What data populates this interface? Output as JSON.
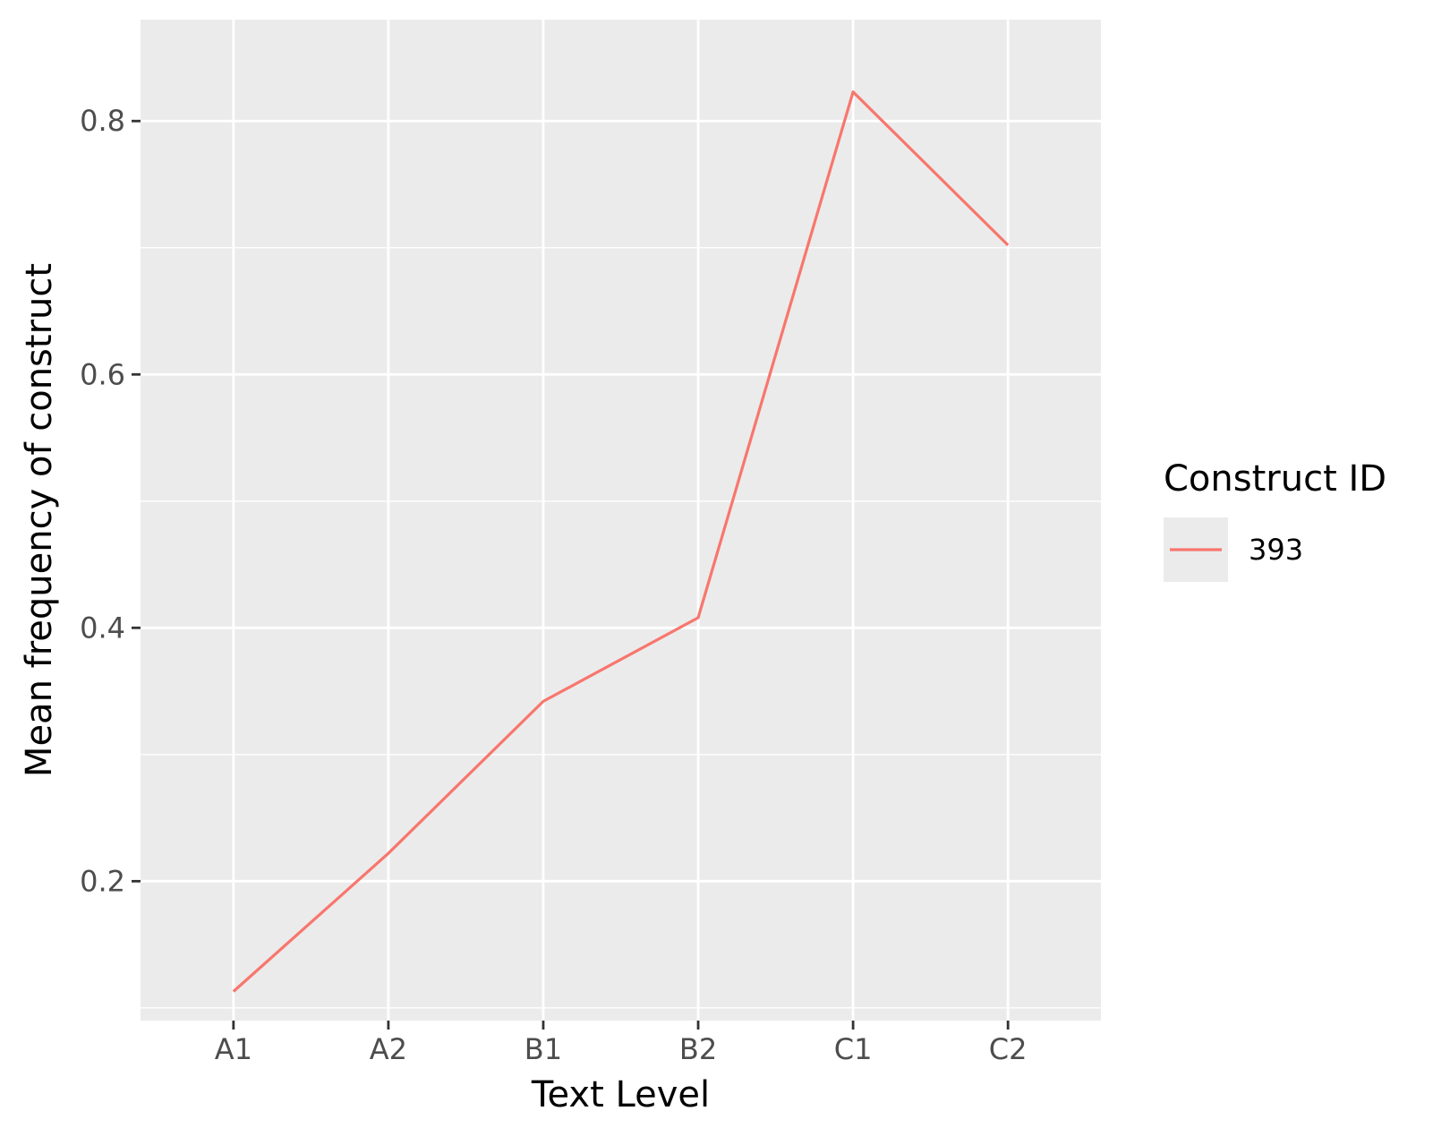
{
  "chart_data": {
    "type": "line",
    "categories": [
      "A1",
      "A2",
      "B1",
      "B2",
      "C1",
      "C2"
    ],
    "series": [
      {
        "name": "393",
        "values": [
          0.113,
          0.222,
          0.342,
          0.408,
          0.823,
          0.702
        ],
        "color": "#F8766D"
      }
    ],
    "xlabel": "Text Level",
    "ylabel": "Mean frequency of construct",
    "ylim": [
      0.09,
      0.88
    ],
    "yticks": [
      0.2,
      0.4,
      0.6,
      0.8
    ],
    "ytick_labels": [
      "0.2",
      "0.4",
      "0.6",
      "0.8"
    ],
    "grid": true,
    "legend": {
      "title": "Construct ID",
      "position": "right"
    },
    "panel_background": "#EBEBEB",
    "grid_color": "#FFFFFF"
  }
}
